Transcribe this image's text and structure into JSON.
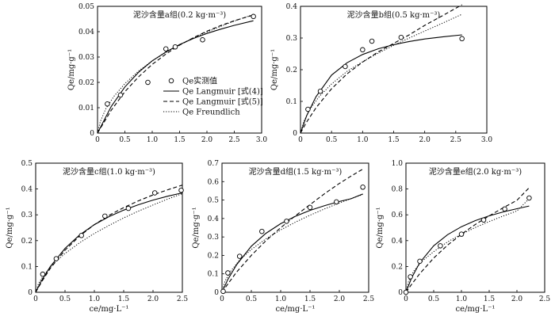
{
  "series_styles": {
    "solid": {
      "color": "#000000"
    },
    "dashed": {
      "color": "#000000"
    },
    "dotted": {
      "color": "#000000"
    }
  },
  "legend": {
    "marker_label": "Qe实测值",
    "solid_label": "Qe Langmuir [式(4)]",
    "dashed_label": "Qe Langmuir [式(5)]",
    "dotted_label": "Qe Freundlich"
  },
  "chart_data": [
    {
      "type": "line",
      "title": "泥沙含量a组(0.2 kg·m⁻³)",
      "xlabel": "",
      "ylabel": "Qe/mg·g⁻¹",
      "xlim": [
        0,
        3.0
      ],
      "ylim": [
        0,
        0.05
      ],
      "xticks": [
        0,
        0.5,
        1.0,
        1.5,
        2.0,
        2.5,
        3.0
      ],
      "xtick_labels": [
        "0",
        "0.5",
        "1.0",
        "1.5",
        "2.0",
        "2.5",
        "3.0"
      ],
      "yticks": [
        0,
        0.01,
        0.02,
        0.03,
        0.04,
        0.05
      ],
      "ytick_labels": [
        "0",
        "0.01",
        "0.02",
        "0.03",
        "0.04",
        "0.05"
      ],
      "points": [
        [
          0.18,
          0.0115
        ],
        [
          0.42,
          0.015
        ],
        [
          0.92,
          0.02
        ],
        [
          1.25,
          0.0332
        ],
        [
          1.42,
          0.034
        ],
        [
          1.92,
          0.0368
        ],
        [
          2.85,
          0.046
        ]
      ],
      "curves": {
        "solid": [
          [
            0,
            0
          ],
          [
            0.25,
            0.0105
          ],
          [
            0.5,
            0.0182
          ],
          [
            0.75,
            0.024
          ],
          [
            1.0,
            0.0285
          ],
          [
            1.25,
            0.032
          ],
          [
            1.5,
            0.0349
          ],
          [
            1.75,
            0.0373
          ],
          [
            2.0,
            0.0393
          ],
          [
            2.25,
            0.041
          ],
          [
            2.5,
            0.0425
          ],
          [
            2.85,
            0.0443
          ]
        ],
        "dashed": [
          [
            0,
            0
          ],
          [
            0.25,
            0.009
          ],
          [
            0.5,
            0.0163
          ],
          [
            0.75,
            0.0222
          ],
          [
            1.0,
            0.0271
          ],
          [
            1.25,
            0.0312
          ],
          [
            1.5,
            0.0347
          ],
          [
            1.75,
            0.0376
          ],
          [
            2.0,
            0.0402
          ],
          [
            2.25,
            0.0424
          ],
          [
            2.5,
            0.0443
          ],
          [
            2.85,
            0.0466
          ]
        ],
        "dotted": [
          [
            0,
            0
          ],
          [
            0.05,
            0.0045
          ],
          [
            0.15,
            0.0095
          ],
          [
            0.3,
            0.0145
          ],
          [
            0.5,
            0.0195
          ],
          [
            0.75,
            0.0245
          ],
          [
            1.0,
            0.0285
          ],
          [
            1.25,
            0.0318
          ],
          [
            1.5,
            0.0348
          ],
          [
            1.75,
            0.0375
          ],
          [
            2.0,
            0.0399
          ],
          [
            2.25,
            0.0421
          ],
          [
            2.5,
            0.0442
          ],
          [
            2.85,
            0.0468
          ]
        ]
      },
      "has_legend": true
    },
    {
      "type": "line",
      "title": "泥沙含量b组(0.5 kg·m⁻³)",
      "xlabel": "",
      "ylabel": "Qe/mg·g⁻¹",
      "xlim": [
        0,
        3.0
      ],
      "ylim": [
        0,
        0.4
      ],
      "xticks": [
        0,
        0.5,
        1.0,
        1.5,
        2.0,
        2.5,
        3.0
      ],
      "xtick_labels": [
        "0",
        "0.5",
        "1.0",
        "1.5",
        "2.0",
        "2.5",
        "3.0"
      ],
      "yticks": [
        0,
        0.1,
        0.2,
        0.3,
        0.4
      ],
      "ytick_labels": [
        "0",
        "0.1",
        "0.2",
        "0.3",
        "0.4"
      ],
      "points": [
        [
          0.12,
          0.075
        ],
        [
          0.32,
          0.132
        ],
        [
          0.72,
          0.21
        ],
        [
          1.0,
          0.263
        ],
        [
          1.15,
          0.29
        ],
        [
          1.62,
          0.302
        ],
        [
          2.6,
          0.298
        ]
      ],
      "curves": {
        "solid": [
          [
            0,
            0
          ],
          [
            0.1,
            0.055
          ],
          [
            0.25,
            0.115
          ],
          [
            0.5,
            0.183
          ],
          [
            0.75,
            0.222
          ],
          [
            1.0,
            0.248
          ],
          [
            1.25,
            0.266
          ],
          [
            1.5,
            0.279
          ],
          [
            1.75,
            0.289
          ],
          [
            2.0,
            0.297
          ],
          [
            2.3,
            0.304
          ],
          [
            2.6,
            0.31
          ]
        ],
        "dashed": [
          [
            0,
            0
          ],
          [
            0.1,
            0.035
          ],
          [
            0.25,
            0.08
          ],
          [
            0.5,
            0.14
          ],
          [
            0.75,
            0.187
          ],
          [
            1.0,
            0.224
          ],
          [
            1.25,
            0.256
          ],
          [
            1.5,
            0.283
          ],
          [
            1.75,
            0.31
          ],
          [
            2.0,
            0.34
          ],
          [
            2.3,
            0.372
          ],
          [
            2.6,
            0.405
          ]
        ],
        "dotted": [
          [
            0,
            0
          ],
          [
            0.05,
            0.035
          ],
          [
            0.15,
            0.075
          ],
          [
            0.3,
            0.115
          ],
          [
            0.5,
            0.155
          ],
          [
            0.75,
            0.195
          ],
          [
            1.0,
            0.225
          ],
          [
            1.25,
            0.252
          ],
          [
            1.5,
            0.277
          ],
          [
            1.75,
            0.3
          ],
          [
            2.0,
            0.322
          ],
          [
            2.3,
            0.348
          ],
          [
            2.6,
            0.375
          ]
        ]
      },
      "has_legend": false
    },
    {
      "type": "line",
      "title": "泥沙含量c组(1.0 kg·m⁻³)",
      "xlabel": "ce/mg·L⁻¹",
      "ylabel": "Qe/mg·g⁻¹",
      "xlim": [
        0,
        2.5
      ],
      "ylim": [
        0,
        0.5
      ],
      "xticks": [
        0,
        0.5,
        1.0,
        1.5,
        2.0,
        2.5
      ],
      "xtick_labels": [
        "0",
        "0.5",
        "1.0",
        "1.5",
        "2.0",
        "2.5"
      ],
      "yticks": [
        0,
        0.1,
        0.2,
        0.3,
        0.4,
        0.5
      ],
      "ytick_labels": [
        "0",
        "0.1",
        "0.2",
        "0.3",
        "0.4",
        "0.5"
      ],
      "points": [
        [
          0.12,
          0.07
        ],
        [
          0.35,
          0.13
        ],
        [
          0.78,
          0.22
        ],
        [
          1.18,
          0.295
        ],
        [
          1.58,
          0.325
        ],
        [
          2.03,
          0.385
        ],
        [
          2.48,
          0.395
        ]
      ],
      "curves": {
        "solid": [
          [
            0,
            0
          ],
          [
            0.1,
            0.045
          ],
          [
            0.25,
            0.1
          ],
          [
            0.5,
            0.17
          ],
          [
            0.75,
            0.222
          ],
          [
            1.0,
            0.262
          ],
          [
            1.25,
            0.293
          ],
          [
            1.5,
            0.318
          ],
          [
            1.75,
            0.339
          ],
          [
            2.0,
            0.357
          ],
          [
            2.25,
            0.372
          ],
          [
            2.5,
            0.385
          ]
        ],
        "dashed": [
          [
            0,
            0
          ],
          [
            0.1,
            0.04
          ],
          [
            0.25,
            0.093
          ],
          [
            0.5,
            0.163
          ],
          [
            0.75,
            0.218
          ],
          [
            1.0,
            0.262
          ],
          [
            1.25,
            0.298
          ],
          [
            1.5,
            0.328
          ],
          [
            1.75,
            0.354
          ],
          [
            2.0,
            0.377
          ],
          [
            2.25,
            0.397
          ],
          [
            2.5,
            0.415
          ]
        ],
        "dotted": [
          [
            0,
            0
          ],
          [
            0.05,
            0.035
          ],
          [
            0.15,
            0.07
          ],
          [
            0.3,
            0.11
          ],
          [
            0.5,
            0.15
          ],
          [
            0.75,
            0.192
          ],
          [
            1.0,
            0.228
          ],
          [
            1.25,
            0.259
          ],
          [
            1.5,
            0.288
          ],
          [
            1.75,
            0.314
          ],
          [
            2.0,
            0.338
          ],
          [
            2.25,
            0.361
          ],
          [
            2.5,
            0.382
          ]
        ]
      },
      "has_legend": false
    },
    {
      "type": "line",
      "title": "泥沙含量d组(1.5 kg·m⁻³)",
      "xlabel": "ce/mg·L⁻¹",
      "ylabel": "Qe/mg·g⁻¹",
      "xlim": [
        0,
        2.5
      ],
      "ylim": [
        0,
        0.7
      ],
      "xticks": [
        0,
        0.5,
        1.0,
        1.5,
        2.0,
        2.5
      ],
      "xtick_labels": [
        "0",
        "0.5",
        "1.0",
        "1.5",
        "2.0",
        "2.5"
      ],
      "yticks": [
        0,
        0.1,
        0.2,
        0.3,
        0.4,
        0.5,
        0.6,
        0.7
      ],
      "ytick_labels": [
        "0",
        "0.1",
        "0.2",
        "0.3",
        "0.4",
        "0.5",
        "0.6",
        "0.7"
      ],
      "points": [
        [
          0.02,
          0.005
        ],
        [
          0.1,
          0.105
        ],
        [
          0.3,
          0.195
        ],
        [
          0.68,
          0.33
        ],
        [
          1.1,
          0.385
        ],
        [
          1.5,
          0.46
        ],
        [
          1.95,
          0.49
        ],
        [
          2.4,
          0.57
        ]
      ],
      "curves": {
        "solid": [
          [
            0,
            0
          ],
          [
            0.1,
            0.07
          ],
          [
            0.25,
            0.15
          ],
          [
            0.5,
            0.25
          ],
          [
            0.75,
            0.32
          ],
          [
            1.0,
            0.372
          ],
          [
            1.25,
            0.412
          ],
          [
            1.5,
            0.444
          ],
          [
            1.75,
            0.47
          ],
          [
            2.0,
            0.492
          ],
          [
            2.2,
            0.507
          ],
          [
            2.4,
            0.533
          ]
        ],
        "dashed": [
          [
            0,
            0
          ],
          [
            0.1,
            0.045
          ],
          [
            0.25,
            0.11
          ],
          [
            0.5,
            0.2
          ],
          [
            0.75,
            0.28
          ],
          [
            1.0,
            0.35
          ],
          [
            1.25,
            0.415
          ],
          [
            1.5,
            0.475
          ],
          [
            1.75,
            0.535
          ],
          [
            2.0,
            0.59
          ],
          [
            2.2,
            0.63
          ],
          [
            2.4,
            0.668
          ]
        ],
        "dotted": [
          [
            0,
            0
          ],
          [
            0.05,
            0.06
          ],
          [
            0.15,
            0.115
          ],
          [
            0.3,
            0.175
          ],
          [
            0.5,
            0.232
          ],
          [
            0.75,
            0.29
          ],
          [
            1.0,
            0.338
          ],
          [
            1.25,
            0.38
          ],
          [
            1.5,
            0.418
          ],
          [
            1.75,
            0.452
          ],
          [
            2.0,
            0.484
          ],
          [
            2.2,
            0.508
          ],
          [
            2.4,
            0.53
          ]
        ]
      },
      "has_legend": false
    },
    {
      "type": "line",
      "title": "泥沙含量e组(2.0 kg·m⁻³)",
      "xlabel": "ce/mg·L⁻¹",
      "ylabel": "Qe/mg·g⁻¹",
      "xlim": [
        0,
        2.5
      ],
      "ylim": [
        0,
        1.0
      ],
      "xticks": [
        0,
        0.5,
        1.0,
        1.5,
        2.0,
        2.5
      ],
      "xtick_labels": [
        "0",
        "0.5",
        "1.0",
        "1.5",
        "2.0",
        "2.5"
      ],
      "yticks": [
        0,
        0.2,
        0.4,
        0.6,
        0.8,
        1.0
      ],
      "ytick_labels": [
        "0",
        "0.2",
        "0.4",
        "0.6",
        "0.8",
        "1.0"
      ],
      "points": [
        [
          0.0,
          0.0
        ],
        [
          0.08,
          0.12
        ],
        [
          0.25,
          0.24
        ],
        [
          0.62,
          0.36
        ],
        [
          1.0,
          0.45
        ],
        [
          1.4,
          0.56
        ],
        [
          1.78,
          0.645
        ],
        [
          2.22,
          0.73
        ]
      ],
      "curves": {
        "solid": [
          [
            0,
            0
          ],
          [
            0.1,
            0.11
          ],
          [
            0.25,
            0.23
          ],
          [
            0.5,
            0.36
          ],
          [
            0.75,
            0.446
          ],
          [
            1.0,
            0.508
          ],
          [
            1.25,
            0.555
          ],
          [
            1.5,
            0.592
          ],
          [
            1.75,
            0.622
          ],
          [
            2.0,
            0.647
          ],
          [
            2.22,
            0.668
          ]
        ],
        "dashed": [
          [
            0,
            0
          ],
          [
            0.1,
            0.06
          ],
          [
            0.25,
            0.145
          ],
          [
            0.5,
            0.265
          ],
          [
            0.75,
            0.365
          ],
          [
            1.0,
            0.45
          ],
          [
            1.25,
            0.525
          ],
          [
            1.5,
            0.592
          ],
          [
            1.75,
            0.654
          ],
          [
            2.0,
            0.712
          ],
          [
            2.22,
            0.81
          ]
        ],
        "dotted": [
          [
            0,
            0
          ],
          [
            0.05,
            0.09
          ],
          [
            0.15,
            0.17
          ],
          [
            0.3,
            0.245
          ],
          [
            0.5,
            0.315
          ],
          [
            0.75,
            0.39
          ],
          [
            1.0,
            0.45
          ],
          [
            1.25,
            0.502
          ],
          [
            1.5,
            0.548
          ],
          [
            1.75,
            0.59
          ],
          [
            2.0,
            0.63
          ],
          [
            2.22,
            0.725
          ]
        ]
      },
      "has_legend": false
    }
  ]
}
